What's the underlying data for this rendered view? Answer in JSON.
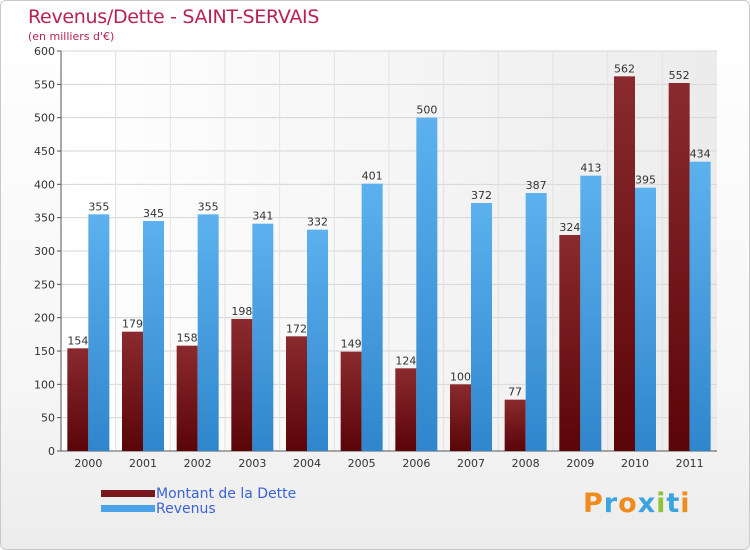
{
  "chart_data": {
    "type": "bar",
    "title": "Revenus/Dette - SAINT-SERVAIS",
    "subtitle": "(en milliers d'€)",
    "categories": [
      "2000",
      "2001",
      "2002",
      "2003",
      "2004",
      "2005",
      "2006",
      "2007",
      "2008",
      "2009",
      "2010",
      "2011"
    ],
    "series": [
      {
        "name": "Montant de la Dette",
        "color": "#7a1a1e",
        "values": [
          154,
          179,
          158,
          198,
          172,
          149,
          124,
          100,
          77,
          324,
          562,
          552
        ]
      },
      {
        "name": "Revenus",
        "color": "#4aa3e6",
        "values": [
          355,
          345,
          355,
          341,
          332,
          401,
          500,
          372,
          387,
          413,
          395,
          434
        ]
      }
    ],
    "ylim": [
      0,
      600
    ],
    "yticks": [
      0,
      50,
      100,
      150,
      200,
      250,
      300,
      350,
      400,
      450,
      500,
      550,
      600
    ],
    "grid": true,
    "legend_position": "bottom-left"
  },
  "logo": {
    "text": "Proxiti",
    "letters": [
      {
        "ch": "P",
        "color": "#f08c1e"
      },
      {
        "ch": "r",
        "color": "#3aa3e0"
      },
      {
        "ch": "o",
        "color": "#f08c1e"
      },
      {
        "ch": "x",
        "color": "#3aa3e0"
      },
      {
        "ch": "i",
        "color": "#8fc33a"
      },
      {
        "ch": "t",
        "color": "#3aa3e0"
      },
      {
        "ch": "i",
        "color": "#f08c1e"
      }
    ]
  }
}
